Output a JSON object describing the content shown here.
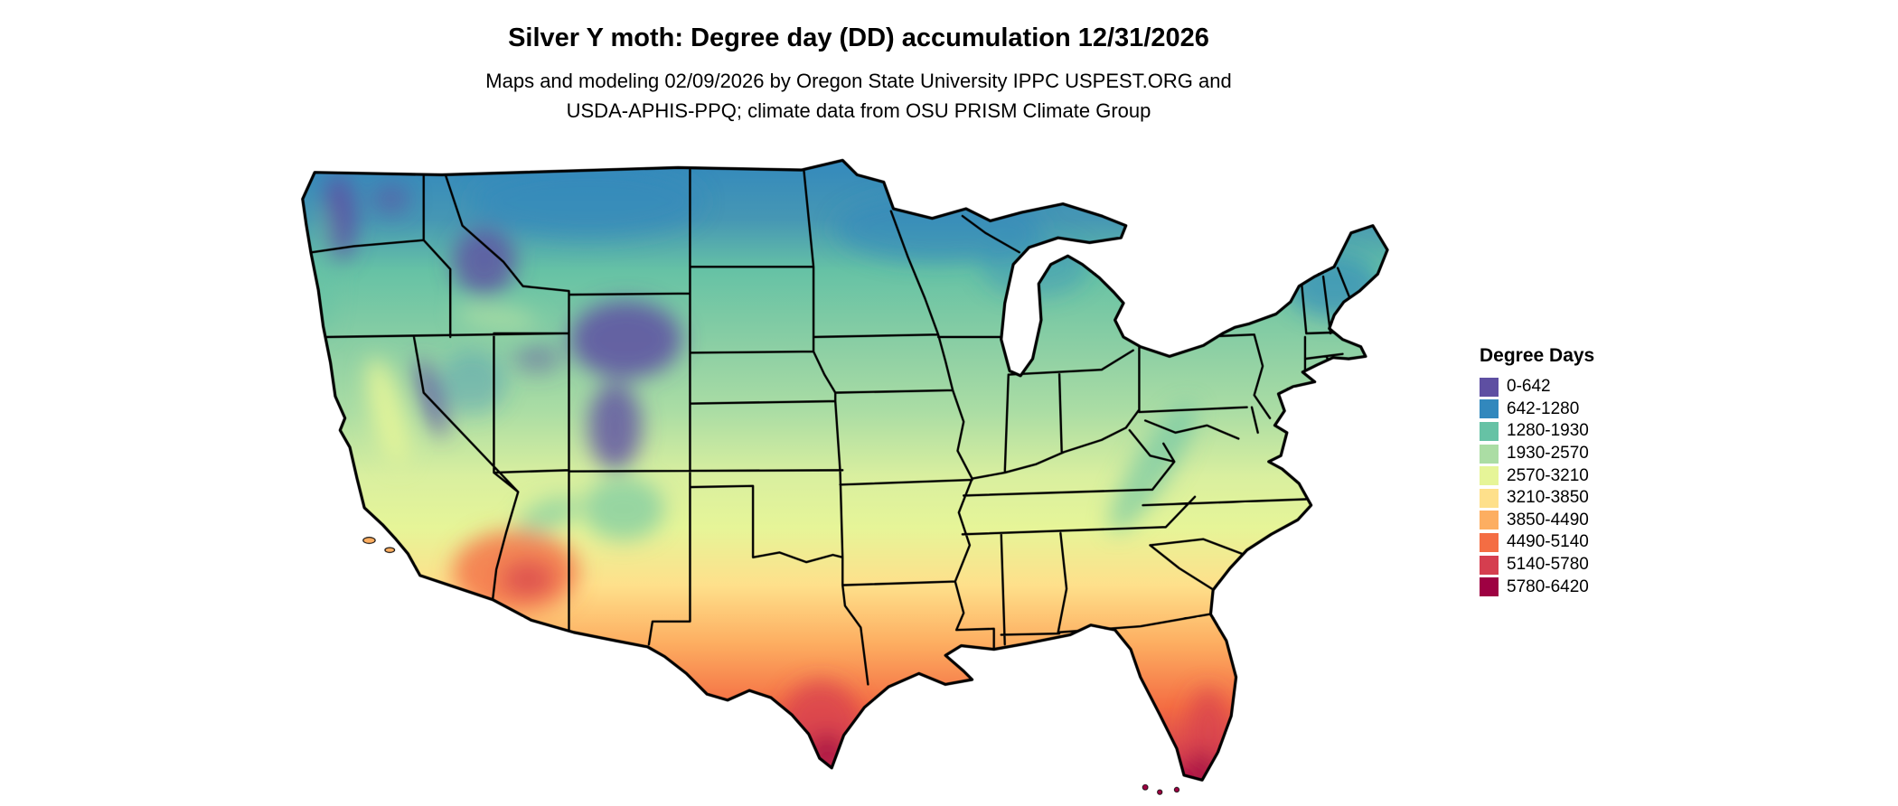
{
  "header": {
    "title": "Silver Y moth: Degree day (DD) accumulation 12/31/2026",
    "subtitle_line1": "Maps and modeling 02/09/2026 by Oregon State University IPPC USPEST.ORG and",
    "subtitle_line2": "USDA-APHIS-PPQ; climate data from OSU PRISM Climate Group"
  },
  "map": {
    "region_label": "Contiguous United States",
    "kind": "choropleth degree-day accumulation raster with state boundaries"
  },
  "legend": {
    "title": "Degree Days",
    "items": [
      {
        "range": "0-642",
        "color": "#5e4fa2"
      },
      {
        "range": "642-1280",
        "color": "#3288bd"
      },
      {
        "range": "1280-1930",
        "color": "#66c2a5"
      },
      {
        "range": "1930-2570",
        "color": "#abdda4"
      },
      {
        "range": "2570-3210",
        "color": "#e6f598"
      },
      {
        "range": "3210-3850",
        "color": "#fee08b"
      },
      {
        "range": "3850-4490",
        "color": "#fdae61"
      },
      {
        "range": "4490-5140",
        "color": "#f46d43"
      },
      {
        "range": "5140-5780",
        "color": "#d53e4f"
      },
      {
        "range": "5780-6420",
        "color": "#9e0142"
      }
    ]
  }
}
